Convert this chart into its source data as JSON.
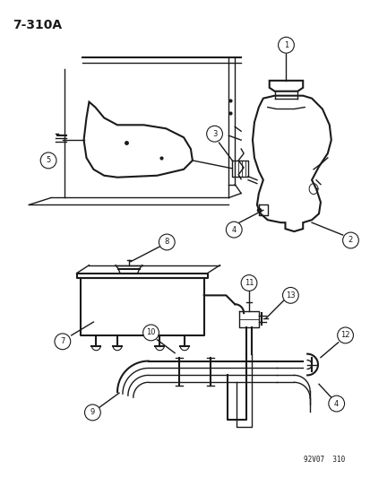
{
  "title": "7-310A",
  "background_color": "#ffffff",
  "line_color": "#1a1a1a",
  "watermark": "92V07  310"
}
